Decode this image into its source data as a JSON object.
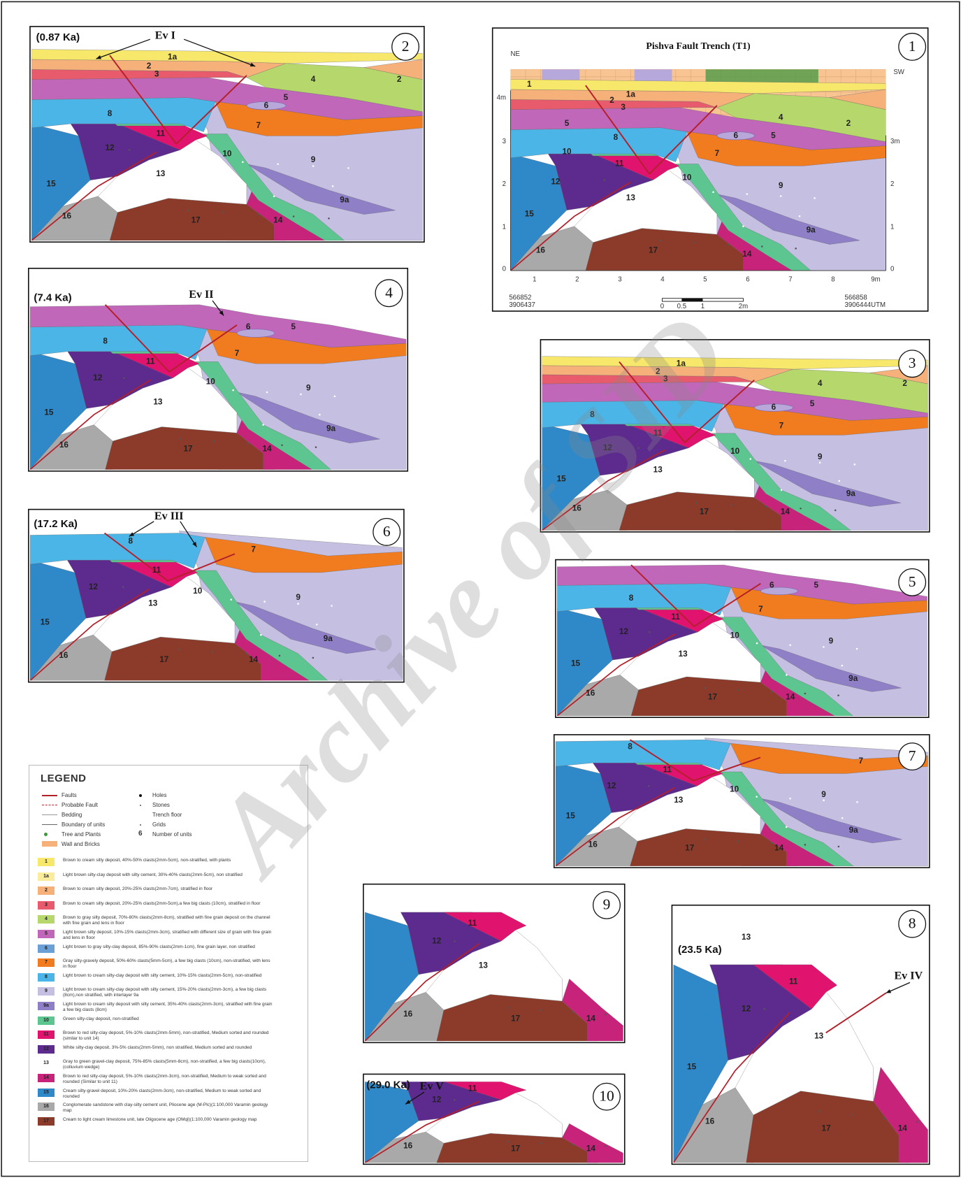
{
  "panels": [
    {
      "number": "2",
      "age": "(0.87 Ka)",
      "events": [
        "Ev I"
      ],
      "units": [
        "1a",
        "2",
        "3",
        "4",
        "5",
        "2",
        "6",
        "7",
        "8",
        "11",
        "12",
        "10",
        "13",
        "9",
        "9a",
        "15",
        "16",
        "17",
        "14"
      ]
    },
    {
      "number": "1",
      "title": "Pishva Fault Trench (T1)",
      "orientation": [
        "NE",
        "SW"
      ],
      "left_axis": [
        "4m",
        "3",
        "2",
        "1",
        "0"
      ],
      "right_axis": [
        "3m",
        "2",
        "1",
        "0"
      ],
      "x_axis": [
        "1",
        "2",
        "3",
        "4",
        "5",
        "6",
        "7",
        "8",
        "9m"
      ],
      "scale_bar": [
        "0",
        "0.5",
        "1",
        "2m"
      ],
      "coordinates": [
        "566852",
        "3906437",
        "566858",
        "3906444",
        "UTM"
      ],
      "units": [
        "1",
        "1a",
        "2",
        "3",
        "5",
        "8",
        "6",
        "5",
        "4",
        "2",
        "7",
        "10",
        "11",
        "12",
        "10",
        "13",
        "9",
        "9a",
        "15",
        "16",
        "17",
        "14"
      ]
    },
    {
      "number": "3",
      "units": [
        "1a",
        "2",
        "3",
        "4",
        "2",
        "8",
        "6",
        "5",
        "7",
        "11",
        "12",
        "10",
        "13",
        "9",
        "9a",
        "15",
        "16",
        "17",
        "14"
      ]
    },
    {
      "number": "4",
      "age": "(7.4 Ka)",
      "events": [
        "Ev II"
      ],
      "units": [
        "6",
        "5",
        "8",
        "7",
        "11",
        "12",
        "10",
        "13",
        "9",
        "15",
        "9a",
        "16",
        "17",
        "14"
      ]
    },
    {
      "number": "5",
      "units": [
        "6",
        "5",
        "8",
        "7",
        "11",
        "12",
        "10",
        "13",
        "9",
        "15",
        "9a",
        "16",
        "17",
        "14"
      ]
    },
    {
      "number": "6",
      "age": "(17.2 Ka)",
      "events": [
        "Ev III"
      ],
      "units": [
        "8",
        "7",
        "11",
        "12",
        "10",
        "13",
        "9",
        "15",
        "9a",
        "16",
        "17",
        "14"
      ]
    },
    {
      "number": "7",
      "units": [
        "8",
        "7",
        "11",
        "12",
        "13",
        "10",
        "9",
        "15",
        "9a",
        "16",
        "17",
        "14"
      ]
    },
    {
      "number": "9",
      "units": [
        "13",
        "11",
        "12",
        "16",
        "17",
        "14"
      ]
    },
    {
      "number": "10",
      "age": "(29.0 Ka)",
      "events": [
        "Ev V"
      ],
      "units": [
        "11",
        "12",
        "16",
        "17",
        "14"
      ]
    },
    {
      "number": "8",
      "age": "(23.5 Ka)",
      "events": [
        "Ev IV"
      ],
      "units": [
        "13",
        "11",
        "12",
        "13",
        "15",
        "16",
        "17",
        "14"
      ]
    }
  ],
  "legend": {
    "title": "LEGEND",
    "symbols": [
      "Faults",
      "Probable Fault",
      "Bedding",
      "Boundary of units",
      "Tree and Plants",
      "Wall and Bricks",
      "Holes",
      "Stones",
      "Trench floor",
      "Grids",
      "Number of units"
    ],
    "number_sample": "6",
    "units": [
      {
        "code": "1",
        "description": "Brown to cream silty deposit, 40%-50% clasts(2mm-5cm), non-stratified, with plants"
      },
      {
        "code": "1a",
        "description": "Light brown silty-clay deposit with silty cement, 30%-40% clasts(2mm-5cm), non stratified"
      },
      {
        "code": "2",
        "description": "Brown to cream silty deposit, 20%-25% clasts(2mm-7cm), stratified in floor"
      },
      {
        "code": "3",
        "description": "Brown to cream silty deposit, 20%-25% clasts(2mm-5cm),a few big clasts (10cm), stratified in floor"
      },
      {
        "code": "4",
        "description": "Brown to gray silty deposit, 70%-80% clasts(2mm-8cm), stratified with fine grain deposit on the channel with fine grain and lens in floor"
      },
      {
        "code": "5",
        "description": "Light brown silty deposit, 10%-15% clasts(2mm-3cm), stratified with different size of grain with fine grain and lens in floor"
      },
      {
        "code": "6",
        "description": "Light brown to gray silty-clay deposit, 85%-90% clasts(2mm-1cm), fine grain layer, non stratified"
      },
      {
        "code": "7",
        "description": "Gray silty-gravely deposit, 50%-60% clasts(5mm-5cm), a few big clasts (10cm), non-stratified, with lens in floor"
      },
      {
        "code": "8",
        "description": "Light brown to cream silty-clay deposit with silty cement, 10%-15% clasts(2mm-5cm), non-stratified"
      },
      {
        "code": "9",
        "description": "Light brown to cream silty-clay deposit with silty cement, 15%-20% clasts(2mm-3cm), a few big clasts (8cm),non stratified, with interlayer 9a"
      },
      {
        "code": "9a",
        "description": "Light brown to cream silty deposit with silty cement, 35%-40% clasts(2mm-3cm), stratified with fine grain a few big clasts (8cm)"
      },
      {
        "code": "10",
        "description": "Green silty-clay deposit, non-stratified"
      },
      {
        "code": "11",
        "description": "Brown to red silty-clay deposit, 5%-10% clasts(2mm-5mm), non-stratified, Medium sorted and rounded (similar to unit 14)"
      },
      {
        "code": "12",
        "description": "White silty-clay deposit, 3%-5% clasts(2mm-5mm), non stratified, Medium sorted and rounded"
      },
      {
        "code": "13",
        "description": "Gray to green gravel-clay deposit, 75%-85% clasts(5mm-8cm), non-stratified, a few big clasts(10cm), (colluvium wedge)"
      },
      {
        "code": "14",
        "description": "Brown to red silty-clay deposit, 5%-10% clasts(2mm-3cm), non-stratified, Medium to weak sorted and rounded (Similar to unit 11)"
      },
      {
        "code": "15",
        "description": "Cream silty-gravel deposit, 10%-20% clasts(2mm-3cm), non-stratified, Medium to weak sorted and rounded"
      },
      {
        "code": "16",
        "description": "Conglomerate sandstone with clay-silty cement unit, Pliocene age (M-Plc)(1:100,000 Varamin geology map"
      },
      {
        "code": "17",
        "description": "Cream to light cream limestone unit, late Oligocene age (OMql)(1:100,000 Varamin geology map"
      }
    ]
  },
  "watermark": "Archive of SID"
}
